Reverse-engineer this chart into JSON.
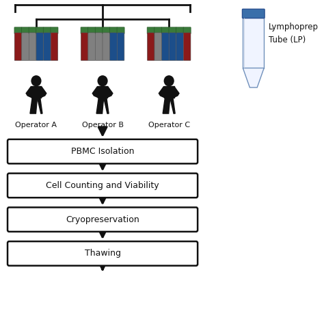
{
  "bg_color": "#ffffff",
  "box_labels": [
    "PBMC Isolation",
    "Cell Counting and Viability",
    "Cryopreservation",
    "Thawing"
  ],
  "operator_labels": [
    "Operator A",
    "Operator B",
    "Operator C"
  ],
  "lp_label_lines": [
    "Lymphoprep",
    "Tube (LP)"
  ],
  "tube_groups": [
    [
      "#8B1A1A",
      "#808080",
      "#808080",
      "#1C4E8A",
      "#1C4E8A",
      "#8B1A1A"
    ],
    [
      "#8B1A1A",
      "#808080",
      "#808080",
      "#808080",
      "#1C4E8A",
      "#1C4E8A"
    ],
    [
      "#8B1A1A",
      "#808080",
      "#1C4E8A",
      "#1C4E8A",
      "#1C4E8A",
      "#8B1A1A"
    ]
  ],
  "tube_cap_color": "#3A7A3A",
  "box_color": "#ffffff",
  "box_edge_color": "#111111",
  "arrow_color": "#111111",
  "text_color": "#111111",
  "person_color": "#111111",
  "figure_size": [
    4.74,
    4.74
  ],
  "dpi": 100
}
